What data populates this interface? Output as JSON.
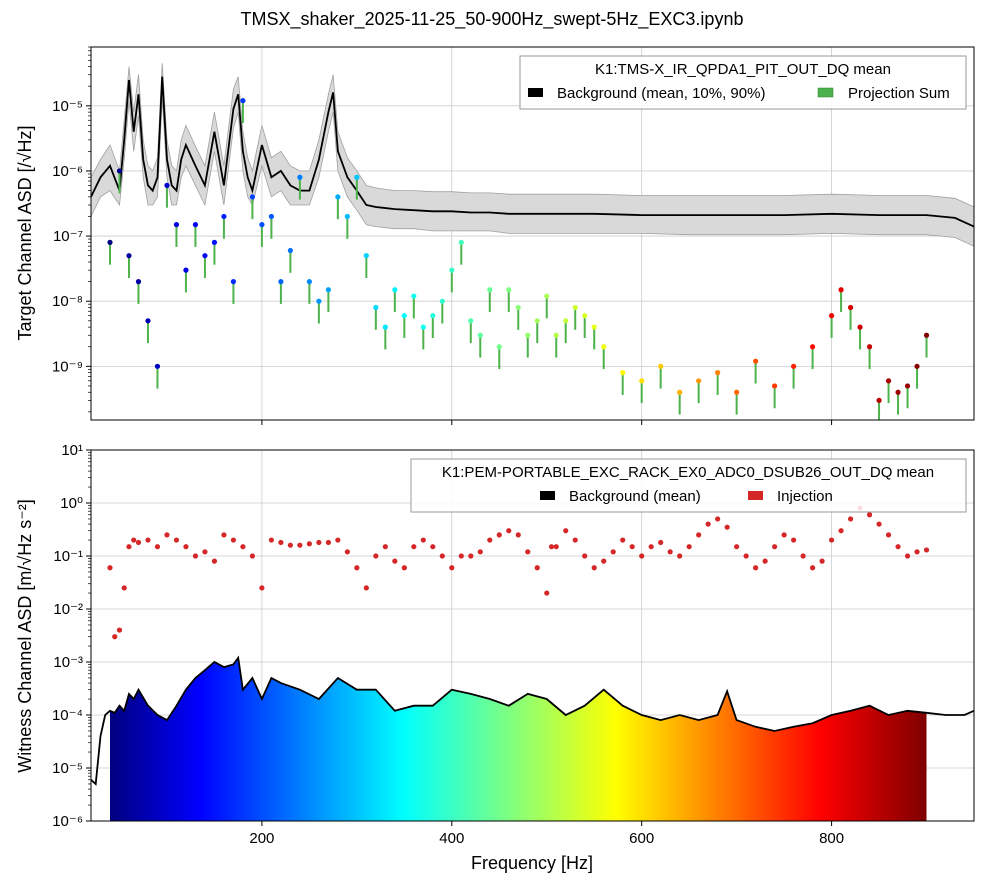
{
  "figure": {
    "title": "TMSX_shaker_2025-11-25_50-900Hz_swept-5Hz_EXC3.ipynb"
  },
  "colors": {
    "background_line": "#000000",
    "percentile_band": "#d9d9d9",
    "projection_sum": "#4cb34c",
    "injection": "#d62728",
    "grid": "#cccccc"
  },
  "chart_data": [
    {
      "type": "line",
      "panel": "top",
      "xlabel": "",
      "ylabel": "Target Channel ASD [/√Hz]",
      "xlim": [
        20,
        950
      ],
      "ylim": [
        1.5e-10,
        8e-05
      ],
      "yscale": "log",
      "grid": true,
      "legend": {
        "title": "K1:TMS-X_IR_QPDA1_PIT_OUT_DQ mean",
        "placement": "top-right",
        "entries": [
          "Background (mean, 10%, 90%)",
          "Projection Sum"
        ]
      },
      "x_ticks": [
        200,
        400,
        600,
        800
      ],
      "y_ticks": [
        "10⁻⁹",
        "10⁻⁸",
        "10⁻⁷",
        "10⁻⁶",
        "10⁻⁵"
      ],
      "series": [
        {
          "name": "Background (mean, 10%, 90%)",
          "x": [
            20,
            30,
            40,
            50,
            55,
            60,
            65,
            70,
            75,
            80,
            85,
            90,
            95,
            100,
            105,
            110,
            115,
            120,
            130,
            140,
            150,
            160,
            170,
            175,
            180,
            185,
            190,
            200,
            210,
            220,
            230,
            240,
            250,
            260,
            270,
            275,
            280,
            290,
            300,
            310,
            320,
            340,
            360,
            380,
            400,
            420,
            440,
            460,
            480,
            500,
            550,
            600,
            650,
            700,
            750,
            800,
            850,
            900,
            930,
            950
          ],
          "y": [
            4e-07,
            8e-07,
            1.2e-06,
            5e-07,
            3e-06,
            2.5e-05,
            4e-06,
            1.5e-05,
            1.5e-06,
            6e-07,
            5e-07,
            8e-07,
            2.8e-05,
            1.5e-06,
            6e-07,
            5e-07,
            1.5e-06,
            2.5e-06,
            1.2e-06,
            6e-07,
            4e-06,
            6e-07,
            9e-06,
            1.5e-05,
            2e-06,
            8e-07,
            5e-07,
            2.5e-06,
            8e-07,
            1e-06,
            6e-07,
            5e-07,
            5e-07,
            1.5e-06,
            8e-06,
            1.6e-05,
            2e-06,
            8e-07,
            5e-07,
            3e-07,
            2.8e-07,
            2.6e-07,
            2.5e-07,
            2.4e-07,
            2.4e-07,
            2.3e-07,
            2.3e-07,
            2.2e-07,
            2.2e-07,
            2.2e-07,
            2.2e-07,
            2.1e-07,
            2.1e-07,
            2.1e-07,
            2.1e-07,
            2.2e-07,
            2.1e-07,
            2.1e-07,
            1.9e-07,
            1.4e-07
          ],
          "p10": [
            2e-07,
            4e-07,
            5e-07,
            3e-07,
            1.5e-06,
            1.2e-05,
            2e-06,
            7e-06,
            8e-07,
            3e-07,
            3e-07,
            4e-07,
            1.3e-05,
            8e-07,
            3e-07,
            3e-07,
            8e-07,
            1.2e-06,
            6e-07,
            3e-07,
            2e-06,
            3e-07,
            4.5e-06,
            8e-06,
            1e-06,
            4e-07,
            3e-07,
            1.2e-06,
            4e-07,
            5e-07,
            3e-07,
            3e-07,
            3e-07,
            8e-07,
            4e-06,
            8e-06,
            1e-06,
            4e-07,
            2.5e-07,
            1.5e-07,
            1.4e-07,
            1.3e-07,
            1.3e-07,
            1.2e-07,
            1.2e-07,
            1.2e-07,
            1.2e-07,
            1.1e-07,
            1.1e-07,
            1.1e-07,
            1.1e-07,
            1.1e-07,
            1.05e-07,
            1.05e-07,
            1.05e-07,
            1.1e-07,
            1.05e-07,
            1.05e-07,
            9.5e-08,
            7e-08
          ],
          "p90": [
            8e-07,
            1.5e-06,
            2.5e-06,
            1e-06,
            6e-06,
            4e-05,
            8e-06,
            3e-05,
            3e-06,
            1.2e-06,
            1e-06,
            1.6e-06,
            4.5e-05,
            3e-06,
            1.2e-06,
            1e-06,
            3e-06,
            5e-06,
            2.4e-06,
            1.2e-06,
            8e-06,
            1.2e-06,
            1.8e-05,
            2.8e-05,
            4e-06,
            1.6e-06,
            1e-06,
            5e-06,
            1.6e-06,
            2e-06,
            1.2e-06,
            1e-06,
            1e-06,
            3e-06,
            1.5e-05,
            3e-05,
            4e-06,
            1.6e-06,
            1e-06,
            6e-07,
            5.5e-07,
            5e-07,
            5e-07,
            4.8e-07,
            4.8e-07,
            4.6e-07,
            4.6e-07,
            4.4e-07,
            4.4e-07,
            4.4e-07,
            4.4e-07,
            4.2e-07,
            4.2e-07,
            4.2e-07,
            4.2e-07,
            4.4e-07,
            4.2e-07,
            4.2e-07,
            3.8e-07,
            2.8e-07
          ]
        },
        {
          "name": "Projection Sum",
          "x": [
            40,
            50,
            60,
            70,
            80,
            90,
            100,
            110,
            120,
            130,
            140,
            150,
            160,
            170,
            180,
            190,
            200,
            210,
            220,
            230,
            240,
            250,
            260,
            270,
            280,
            290,
            300,
            310,
            320,
            330,
            340,
            350,
            360,
            370,
            380,
            390,
            400,
            410,
            420,
            430,
            440,
            450,
            460,
            470,
            480,
            490,
            500,
            510,
            520,
            530,
            540,
            550,
            560,
            580,
            600,
            620,
            640,
            660,
            680,
            700,
            720,
            740,
            760,
            780,
            800,
            810,
            820,
            830,
            840,
            850,
            860,
            870,
            880,
            890,
            900
          ],
          "y": [
            8e-08,
            1e-06,
            5e-08,
            2e-08,
            5e-09,
            1e-09,
            6e-07,
            1.5e-07,
            3e-08,
            1.5e-07,
            5e-08,
            8e-08,
            2e-07,
            2e-08,
            1.2e-05,
            4e-07,
            1.5e-07,
            2e-07,
            2e-08,
            6e-08,
            8e-07,
            2e-08,
            1e-08,
            1.5e-08,
            4e-07,
            2e-07,
            8e-07,
            5e-08,
            8e-09,
            4e-09,
            1.5e-08,
            6e-09,
            1.2e-08,
            4e-09,
            6e-09,
            1e-08,
            3e-08,
            8e-08,
            5e-09,
            3e-09,
            1.5e-08,
            2e-09,
            1.5e-08,
            8e-09,
            3e-09,
            5e-09,
            1.2e-08,
            3e-09,
            5e-09,
            8e-09,
            6e-09,
            4e-09,
            2e-09,
            8e-10,
            6e-10,
            1e-09,
            4e-10,
            6e-10,
            8e-10,
            4e-10,
            1.2e-09,
            5e-10,
            1e-09,
            2e-09,
            6e-09,
            1.5e-08,
            8e-09,
            4e-09,
            2e-09,
            3e-10,
            6e-10,
            4e-10,
            5e-10,
            1e-09,
            3e-09
          ]
        }
      ]
    },
    {
      "type": "area",
      "panel": "bottom",
      "xlabel": "Frequency [Hz]",
      "ylabel": "Witness Channel ASD [m/√Hz s⁻²]",
      "xlim": [
        20,
        950
      ],
      "ylim": [
        1e-06,
        10
      ],
      "yscale": "log",
      "grid": true,
      "legend": {
        "title": "K1:PEM-PORTABLE_EXC_RACK_EX0_ADC0_DSUB26_OUT_DQ mean",
        "placement": "top-right",
        "entries": [
          "Background (mean)",
          "Injection"
        ]
      },
      "x_ticks": [
        200,
        400,
        600,
        800
      ],
      "y_ticks": [
        "10⁻⁶",
        "10⁻⁵",
        "10⁻⁴",
        "10⁻³",
        "10⁻²",
        "10⁻¹",
        "10⁰",
        "10¹"
      ],
      "series": [
        {
          "name": "Background (mean)",
          "x": [
            20,
            25,
            30,
            35,
            40,
            45,
            50,
            55,
            60,
            65,
            70,
            80,
            90,
            100,
            110,
            120,
            130,
            140,
            150,
            160,
            170,
            175,
            180,
            190,
            200,
            210,
            220,
            240,
            260,
            280,
            300,
            320,
            340,
            360,
            380,
            400,
            420,
            440,
            460,
            480,
            500,
            520,
            540,
            560,
            580,
            600,
            620,
            640,
            660,
            680,
            690,
            700,
            720,
            740,
            760,
            780,
            800,
            820,
            840,
            860,
            880,
            900,
            920,
            940,
            950
          ],
          "y": [
            6e-06,
            5e-06,
            4e-05,
            0.0001,
            0.00012,
            0.00011,
            0.00015,
            0.00012,
            0.00025,
            0.0002,
            0.0003,
            0.00015,
            0.0001,
            8e-05,
            0.00015,
            0.0003,
            0.0005,
            0.0007,
            0.001,
            0.0008,
            0.0009,
            0.0012,
            0.0003,
            0.0005,
            0.0002,
            0.0005,
            0.0004,
            0.0003,
            0.0002,
            0.0005,
            0.0003,
            0.0003,
            0.00012,
            0.00015,
            0.00015,
            0.0003,
            0.00025,
            0.0002,
            0.00015,
            0.00025,
            0.0002,
            0.0001,
            0.00015,
            0.0003,
            0.00015,
            0.0001,
            8e-05,
            0.0001,
            8e-05,
            0.0001,
            0.00028,
            8e-05,
            6e-05,
            5e-05,
            6e-05,
            7e-05,
            0.0001,
            0.00012,
            0.00015,
            0.0001,
            0.00012,
            0.00011,
            0.0001,
            0.0001,
            0.00012
          ]
        },
        {
          "name": "Injection",
          "x": [
            40,
            45,
            50,
            55,
            60,
            65,
            70,
            80,
            90,
            100,
            110,
            120,
            130,
            140,
            150,
            160,
            170,
            180,
            190,
            200,
            210,
            220,
            230,
            240,
            250,
            260,
            270,
            280,
            290,
            300,
            310,
            320,
            330,
            340,
            350,
            360,
            370,
            380,
            390,
            400,
            410,
            420,
            430,
            440,
            450,
            460,
            470,
            480,
            490,
            500,
            505,
            510,
            520,
            530,
            540,
            550,
            560,
            570,
            580,
            590,
            600,
            610,
            620,
            630,
            640,
            650,
            660,
            670,
            680,
            690,
            700,
            710,
            720,
            730,
            740,
            750,
            760,
            770,
            780,
            790,
            800,
            810,
            820,
            830,
            840,
            850,
            860,
            870,
            880,
            890,
            900
          ],
          "y": [
            0.06,
            0.003,
            0.004,
            0.025,
            0.15,
            0.2,
            0.18,
            0.2,
            0.15,
            0.25,
            0.2,
            0.15,
            0.1,
            0.12,
            0.08,
            0.25,
            0.2,
            0.15,
            0.1,
            0.025,
            0.2,
            0.18,
            0.16,
            0.16,
            0.17,
            0.18,
            0.18,
            0.2,
            0.12,
            0.06,
            0.025,
            0.1,
            0.15,
            0.08,
            0.06,
            0.15,
            0.2,
            0.15,
            0.1,
            0.06,
            0.1,
            0.1,
            0.12,
            0.2,
            0.25,
            0.3,
            0.25,
            0.12,
            0.06,
            0.02,
            0.15,
            0.15,
            0.3,
            0.2,
            0.1,
            0.06,
            0.08,
            0.12,
            0.2,
            0.15,
            0.1,
            0.15,
            0.18,
            0.12,
            0.1,
            0.15,
            0.25,
            0.4,
            0.5,
            0.35,
            0.15,
            0.1,
            0.06,
            0.08,
            0.15,
            0.25,
            0.2,
            0.1,
            0.06,
            0.08,
            0.2,
            0.3,
            0.5,
            0.8,
            0.6,
            0.4,
            0.25,
            0.15,
            0.1,
            0.12,
            0.13
          ]
        }
      ]
    }
  ]
}
